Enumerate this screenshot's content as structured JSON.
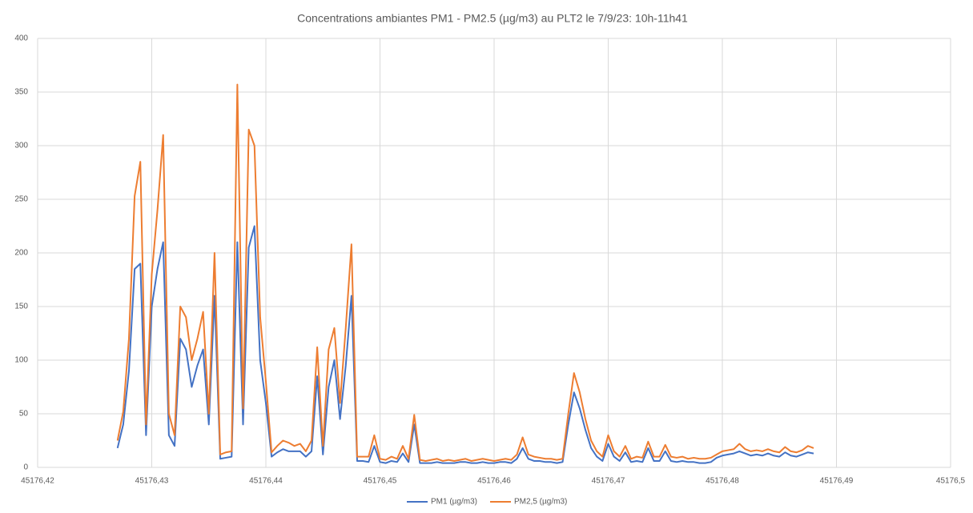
{
  "chart_data": {
    "type": "line",
    "title": "Concentrations ambiantes PM1 - PM2.5 (µg/m3) au PLT2 le 7/9/23: 10h-11h41",
    "x": [
      45176.427,
      45176.4275,
      45176.428,
      45176.4285,
      45176.429,
      45176.4295,
      45176.43,
      45176.4305,
      45176.431,
      45176.4315,
      45176.432,
      45176.4325,
      45176.433,
      45176.4335,
      45176.434,
      45176.4345,
      45176.435,
      45176.4355,
      45176.436,
      45176.4365,
      45176.437,
      45176.4375,
      45176.438,
      45176.4385,
      45176.439,
      45176.4395,
      45176.44,
      45176.4405,
      45176.441,
      45176.4415,
      45176.442,
      45176.4425,
      45176.443,
      45176.4435,
      45176.444,
      45176.4445,
      45176.445,
      45176.4455,
      45176.446,
      45176.4465,
      45176.447,
      45176.4475,
      45176.448,
      45176.4485,
      45176.449,
      45176.4495,
      45176.45,
      45176.4505,
      45176.451,
      45176.4515,
      45176.452,
      45176.4525,
      45176.453,
      45176.4535,
      45176.454,
      45176.4545,
      45176.455,
      45176.4555,
      45176.456,
      45176.4565,
      45176.457,
      45176.4575,
      45176.458,
      45176.4585,
      45176.459,
      45176.4595,
      45176.46,
      45176.4605,
      45176.461,
      45176.4615,
      45176.462,
      45176.4625,
      45176.463,
      45176.4635,
      45176.464,
      45176.4645,
      45176.465,
      45176.4655,
      45176.466,
      45176.4665,
      45176.467,
      45176.4675,
      45176.468,
      45176.4685,
      45176.469,
      45176.4695,
      45176.47,
      45176.4705,
      45176.471,
      45176.4715,
      45176.472,
      45176.4725,
      45176.473,
      45176.4735,
      45176.474,
      45176.4745,
      45176.475,
      45176.4755,
      45176.476,
      45176.4765,
      45176.477,
      45176.4775,
      45176.478,
      45176.4785,
      45176.479,
      45176.4795,
      45176.48,
      45176.4805,
      45176.481,
      45176.4815,
      45176.482,
      45176.4825,
      45176.483,
      45176.4835,
      45176.484,
      45176.4845,
      45176.485,
      45176.4855,
      45176.486,
      45176.4865,
      45176.487,
      45176.4875,
      45176.488
    ],
    "series": [
      {
        "name": "PM1 (µg/m3)",
        "color": "#4472c4",
        "values": [
          18,
          40,
          90,
          185,
          190,
          30,
          150,
          185,
          210,
          30,
          20,
          120,
          110,
          75,
          95,
          110,
          40,
          160,
          8,
          9,
          10,
          210,
          40,
          205,
          225,
          100,
          60,
          10,
          14,
          17,
          15,
          15,
          15,
          10,
          15,
          85,
          12,
          75,
          100,
          45,
          95,
          160,
          6,
          6,
          5,
          20,
          5,
          4,
          6,
          5,
          13,
          5,
          40,
          4,
          4,
          4,
          5,
          4,
          4,
          4,
          5,
          5,
          4,
          4,
          5,
          4,
          4,
          5,
          5,
          4,
          8,
          18,
          8,
          6,
          6,
          5,
          5,
          4,
          5,
          40,
          70,
          55,
          35,
          18,
          10,
          6,
          22,
          10,
          6,
          14,
          5,
          6,
          5,
          18,
          6,
          6,
          15,
          6,
          5,
          6,
          5,
          5,
          4,
          4,
          5,
          9,
          11,
          12,
          13,
          15,
          13,
          11,
          12,
          11,
          13,
          11,
          10,
          14,
          11,
          10,
          12,
          14,
          13
        ]
      },
      {
        "name": "PM2,5 (µg/m3)",
        "color": "#ed7d31",
        "values": [
          25,
          52,
          120,
          253,
          285,
          40,
          180,
          240,
          310,
          50,
          30,
          150,
          140,
          100,
          120,
          145,
          50,
          200,
          12,
          14,
          15,
          357,
          55,
          315,
          300,
          140,
          80,
          14,
          20,
          25,
          23,
          20,
          22,
          15,
          25,
          112,
          20,
          110,
          130,
          60,
          130,
          208,
          10,
          10,
          10,
          30,
          8,
          7,
          10,
          8,
          20,
          8,
          49,
          7,
          6,
          7,
          8,
          6,
          7,
          6,
          7,
          8,
          6,
          7,
          8,
          7,
          6,
          7,
          8,
          7,
          12,
          28,
          12,
          10,
          9,
          8,
          8,
          7,
          8,
          50,
          88,
          70,
          45,
          25,
          15,
          10,
          30,
          15,
          10,
          20,
          8,
          10,
          9,
          24,
          10,
          10,
          21,
          10,
          9,
          10,
          8,
          9,
          8,
          8,
          9,
          12,
          15,
          16,
          17,
          22,
          17,
          15,
          16,
          15,
          17,
          15,
          14,
          19,
          15,
          14,
          16,
          20,
          18
        ]
      }
    ],
    "xlim": [
      45176.42,
      45176.5
    ],
    "xticks": [
      {
        "value": 45176.42,
        "label": "45176,42"
      },
      {
        "value": 45176.43,
        "label": "45176,43"
      },
      {
        "value": 45176.44,
        "label": "45176,44"
      },
      {
        "value": 45176.45,
        "label": "45176,45"
      },
      {
        "value": 45176.46,
        "label": "45176,46"
      },
      {
        "value": 45176.47,
        "label": "45176,47"
      },
      {
        "value": 45176.48,
        "label": "45176,48"
      },
      {
        "value": 45176.49,
        "label": "45176,49"
      },
      {
        "value": 45176.5,
        "label": "45176,5"
      }
    ],
    "ylim": [
      0,
      400
    ],
    "yticks": [
      0,
      50,
      100,
      150,
      200,
      250,
      300,
      350,
      400
    ],
    "grid": true,
    "legend": "bottom"
  }
}
